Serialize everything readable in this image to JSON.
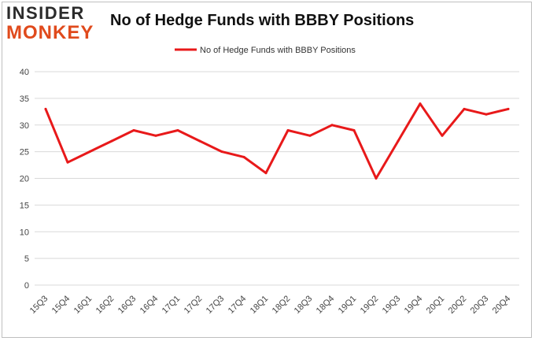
{
  "logo": {
    "line1": "INSIDER",
    "line2": "MONKEY"
  },
  "title": "No of Hedge Funds with BBBY Positions",
  "colors": {
    "series": "#e8191a",
    "grid": "#d9d9d9",
    "logo_accent": "#e04a1c"
  },
  "chart_data": {
    "type": "line",
    "title": "No of Hedge Funds with BBBY Positions",
    "xlabel": "",
    "ylabel": "",
    "ylim": [
      0,
      40
    ],
    "yticks": [
      0,
      5,
      10,
      15,
      20,
      25,
      30,
      35,
      40
    ],
    "grid": true,
    "legend_position": "top-center",
    "categories": [
      "15Q3",
      "15Q4",
      "16Q1",
      "16Q2",
      "16Q3",
      "16Q4",
      "17Q1",
      "17Q2",
      "17Q3",
      "17Q4",
      "18Q1",
      "18Q2",
      "18Q3",
      "18Q4",
      "19Q1",
      "19Q2",
      "19Q3",
      "19Q4",
      "20Q1",
      "20Q2",
      "20Q3",
      "20Q4"
    ],
    "series": [
      {
        "name": "No of Hedge Funds with BBBY Positions",
        "values": [
          33,
          23,
          25,
          27,
          29,
          28,
          29,
          27,
          25,
          24,
          21,
          29,
          28,
          30,
          29,
          20,
          27,
          34,
          28,
          33,
          32,
          33
        ]
      }
    ]
  }
}
